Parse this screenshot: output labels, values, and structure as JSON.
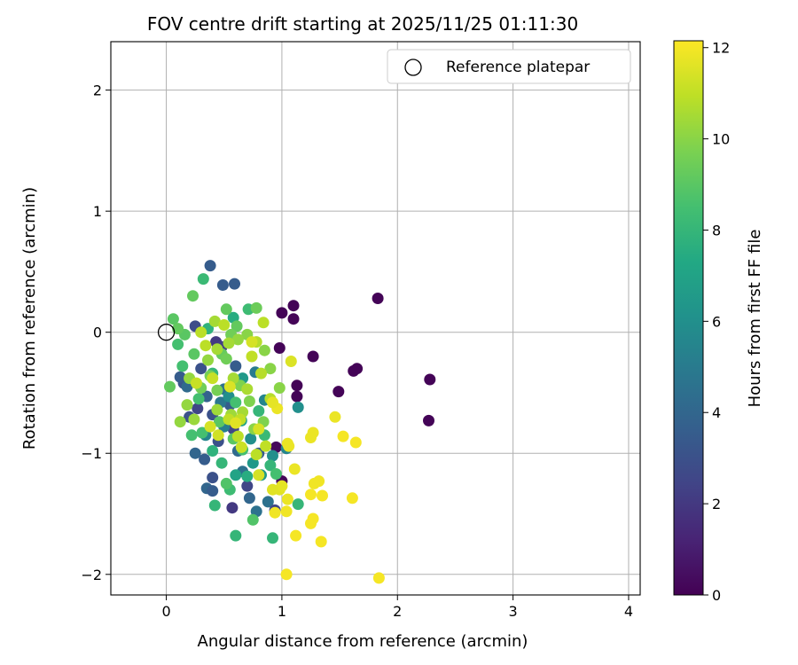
{
  "chart_data": {
    "type": "scatter",
    "title": "FOV centre drift starting at 2025/11/25 01:11:30",
    "xlabel": "Angular distance from reference (arcmin)",
    "ylabel": "Rotation from reference (arcmin)",
    "xlim": [
      -0.48,
      4.1
    ],
    "ylim": [
      -2.17,
      2.4
    ],
    "xticks": [
      0,
      1,
      2,
      3,
      4
    ],
    "yticks": [
      -2,
      -1,
      0,
      1,
      2
    ],
    "grid": true,
    "legend": {
      "position": "upper right",
      "entries": [
        "Reference platepar"
      ]
    },
    "reference_point": {
      "x": 0,
      "y": 0,
      "label": "Reference platepar"
    },
    "colorbar": {
      "label": "Hours from first FF file",
      "range": [
        0,
        12.15
      ],
      "ticks": [
        0,
        2,
        4,
        6,
        8,
        10,
        12
      ],
      "colormap": "viridis"
    },
    "series": [
      {
        "name": "FOV centre drift",
        "points": [
          [
            1.83,
            0.28,
            0.1
          ],
          [
            2.28,
            -0.39,
            0.1
          ],
          [
            2.27,
            -0.73,
            0.1
          ],
          [
            1.65,
            -0.3,
            0.1
          ],
          [
            1.62,
            -0.32,
            0.1
          ],
          [
            1.49,
            -0.49,
            0.1
          ],
          [
            1.27,
            -0.2,
            0.1
          ],
          [
            1.1,
            0.22,
            0.1
          ],
          [
            1.1,
            0.11,
            0.1
          ],
          [
            1.0,
            0.16,
            0.1
          ],
          [
            0.98,
            -0.13,
            0.1
          ],
          [
            1.13,
            -0.44,
            0.1
          ],
          [
            1.13,
            -0.53,
            0.1
          ],
          [
            0.95,
            -0.95,
            0.2
          ],
          [
            1.0,
            -1.23,
            0.2
          ],
          [
            0.38,
            0.55,
            3.5
          ],
          [
            0.49,
            0.39,
            3.5
          ],
          [
            0.59,
            0.4,
            3.5
          ],
          [
            0.25,
            0.05,
            2.8
          ],
          [
            0.43,
            -0.08,
            2.0
          ],
          [
            0.3,
            -0.3,
            3.0
          ],
          [
            0.15,
            -0.42,
            3.2
          ],
          [
            0.27,
            -0.63,
            2.5
          ],
          [
            0.35,
            -0.53,
            3.8
          ],
          [
            0.4,
            -0.68,
            3.0
          ],
          [
            0.5,
            -0.47,
            4.5
          ],
          [
            0.45,
            -0.9,
            3.0
          ],
          [
            0.33,
            -1.05,
            3.5
          ],
          [
            0.4,
            -1.2,
            3.0
          ],
          [
            0.35,
            -1.29,
            4.0
          ],
          [
            0.4,
            -1.31,
            3.5
          ],
          [
            0.57,
            -1.45,
            2.0
          ],
          [
            0.7,
            -1.27,
            2.5
          ],
          [
            0.72,
            -1.37,
            4.0
          ],
          [
            0.78,
            -1.48,
            4.5
          ],
          [
            0.88,
            -1.4,
            4.5
          ],
          [
            0.94,
            -1.47,
            2.5
          ],
          [
            0.25,
            -1.0,
            4.0
          ],
          [
            0.2,
            -0.7,
            3.0
          ],
          [
            0.12,
            -0.37,
            3.5
          ],
          [
            0.48,
            -0.12,
            2.2
          ],
          [
            0.55,
            -0.6,
            3.5
          ],
          [
            0.62,
            -0.98,
            4.2
          ],
          [
            0.66,
            -1.15,
            4.5
          ],
          [
            0.8,
            -1.0,
            3.5
          ],
          [
            0.58,
            -0.8,
            2.5
          ],
          [
            0.6,
            -0.28,
            3.5
          ],
          [
            0.77,
            -0.33,
            5.0
          ],
          [
            0.85,
            -0.56,
            5.5
          ],
          [
            1.14,
            -0.62,
            6.0
          ],
          [
            0.92,
            -1.02,
            6.0
          ],
          [
            1.04,
            -0.96,
            5.5
          ],
          [
            0.5,
            -0.78,
            5.2
          ],
          [
            0.47,
            -0.58,
            4.8
          ],
          [
            0.18,
            -0.45,
            4.2
          ],
          [
            0.34,
            -0.85,
            5.5
          ],
          [
            0.75,
            -1.08,
            6.5
          ],
          [
            0.82,
            -1.18,
            6.5
          ],
          [
            0.6,
            -1.18,
            7.0
          ],
          [
            0.65,
            -0.73,
            7.0
          ],
          [
            0.73,
            -0.88,
            6.0
          ],
          [
            0.54,
            -0.53,
            6.0
          ],
          [
            0.66,
            -0.38,
            6.5
          ],
          [
            0.32,
            0.44,
            8.2
          ],
          [
            0.58,
            0.12,
            7.5
          ],
          [
            0.71,
            0.19,
            8.3
          ],
          [
            0.36,
            0.03,
            7.8
          ],
          [
            0.92,
            -1.7,
            8.0
          ],
          [
            0.6,
            -1.68,
            8.0
          ],
          [
            1.14,
            -1.42,
            8.0
          ],
          [
            0.42,
            -1.43,
            8.0
          ],
          [
            0.55,
            -1.3,
            8.3
          ],
          [
            0.75,
            -1.55,
            8.8
          ],
          [
            0.22,
            -0.85,
            8.5
          ],
          [
            0.31,
            -0.83,
            8.5
          ],
          [
            0.4,
            -0.98,
            7.8
          ],
          [
            0.48,
            -1.08,
            8.0
          ],
          [
            0.52,
            -1.25,
            8.8
          ],
          [
            0.7,
            -1.19,
            7.5
          ],
          [
            0.85,
            -0.85,
            8.2
          ],
          [
            0.9,
            -1.1,
            8.0
          ],
          [
            0.95,
            -1.17,
            8.5
          ],
          [
            0.1,
            -0.1,
            8.5
          ],
          [
            0.14,
            -0.28,
            8.5
          ],
          [
            0.28,
            -0.55,
            8.5
          ],
          [
            0.4,
            -0.34,
            8.0
          ],
          [
            0.6,
            -0.58,
            8.5
          ],
          [
            0.8,
            -0.65,
            8.0
          ],
          [
            0.66,
            -0.97,
            8.5
          ],
          [
            0.58,
            -0.88,
            9.0
          ],
          [
            0.46,
            -0.74,
            9.0
          ],
          [
            0.24,
            -0.18,
            9.0
          ],
          [
            0.16,
            -0.02,
            9.0
          ],
          [
            0.06,
            0.11,
            9.0
          ],
          [
            0.1,
            0.03,
            9.2
          ],
          [
            0.03,
            -0.45,
            9.2
          ],
          [
            0.23,
            0.3,
            9.2
          ],
          [
            0.52,
            0.19,
            9.2
          ],
          [
            0.61,
            0.05,
            9.2
          ],
          [
            0.78,
            0.2,
            9.4
          ],
          [
            0.48,
            -0.18,
            9.3
          ],
          [
            0.52,
            -0.22,
            9.5
          ],
          [
            0.56,
            -0.02,
            9.5
          ],
          [
            0.3,
            -0.46,
            9.5
          ],
          [
            0.38,
            -0.36,
            9.6
          ],
          [
            0.44,
            -0.48,
            9.6
          ],
          [
            0.64,
            -0.44,
            9.8
          ],
          [
            0.72,
            -0.57,
            9.8
          ],
          [
            0.84,
            -0.74,
            9.8
          ],
          [
            0.76,
            -0.8,
            10.0
          ],
          [
            0.9,
            -0.3,
            10.0
          ],
          [
            0.98,
            -0.46,
            10.0
          ],
          [
            0.7,
            -0.02,
            10.0
          ],
          [
            0.85,
            -0.15,
            10.0
          ],
          [
            0.62,
            -0.06,
            10.2
          ],
          [
            0.36,
            -0.23,
            10.2
          ],
          [
            0.2,
            -0.38,
            10.2
          ],
          [
            0.18,
            -0.6,
            10.2
          ],
          [
            0.12,
            -0.74,
            10.2
          ],
          [
            0.24,
            -0.72,
            10.3
          ],
          [
            0.44,
            -0.64,
            10.4
          ],
          [
            0.56,
            -0.68,
            10.4
          ],
          [
            0.66,
            -0.66,
            10.5
          ],
          [
            0.42,
            0.09,
            10.5
          ],
          [
            0.44,
            -0.14,
            10.5
          ],
          [
            0.54,
            -0.09,
            10.5
          ],
          [
            0.58,
            -0.38,
            10.5
          ],
          [
            0.7,
            -0.47,
            10.6
          ],
          [
            0.9,
            -0.55,
            10.8
          ],
          [
            0.78,
            -0.08,
            10.8
          ],
          [
            0.82,
            -0.34,
            10.8
          ],
          [
            0.84,
            0.08,
            10.9
          ],
          [
            0.5,
            0.06,
            10.9
          ],
          [
            0.3,
            0.0,
            10.9
          ],
          [
            0.34,
            -0.11,
            10.9
          ],
          [
            0.62,
            -0.86,
            10.9
          ],
          [
            0.78,
            -1.01,
            10.9
          ],
          [
            0.86,
            -0.94,
            11.0
          ],
          [
            0.74,
            -0.2,
            11.0
          ],
          [
            0.64,
            -0.72,
            11.0
          ],
          [
            0.54,
            -0.72,
            11.0
          ],
          [
            0.4,
            -0.38,
            11.1
          ],
          [
            0.26,
            -0.42,
            11.1
          ],
          [
            1.08,
            -0.24,
            11.5
          ],
          [
            1.46,
            -0.7,
            11.8
          ],
          [
            1.27,
            -0.83,
            11.8
          ],
          [
            1.25,
            -0.87,
            11.8
          ],
          [
            1.53,
            -0.86,
            12.0
          ],
          [
            1.64,
            -0.91,
            12.0
          ],
          [
            1.05,
            -0.92,
            11.8
          ],
          [
            1.06,
            -0.94,
            11.8
          ],
          [
            0.96,
            -0.63,
            11.8
          ],
          [
            0.92,
            -0.58,
            11.7
          ],
          [
            1.32,
            -1.23,
            11.9
          ],
          [
            1.28,
            -1.25,
            11.9
          ],
          [
            1.11,
            -1.13,
            11.8
          ],
          [
            0.98,
            -1.3,
            11.6
          ],
          [
            1.05,
            -1.38,
            11.8
          ],
          [
            1.0,
            -1.27,
            11.7
          ],
          [
            0.92,
            -1.3,
            11.6
          ],
          [
            0.94,
            -1.49,
            11.9
          ],
          [
            1.04,
            -1.48,
            11.9
          ],
          [
            1.25,
            -1.34,
            12.0
          ],
          [
            1.35,
            -1.35,
            12.0
          ],
          [
            1.61,
            -1.37,
            12.0
          ],
          [
            1.27,
            -1.54,
            12.0
          ],
          [
            1.25,
            -1.58,
            12.0
          ],
          [
            1.12,
            -1.68,
            12.0
          ],
          [
            1.34,
            -1.73,
            12.0
          ],
          [
            1.04,
            -2.0,
            12.0
          ],
          [
            1.84,
            -2.03,
            12.0
          ],
          [
            0.8,
            -0.8,
            11.4
          ],
          [
            0.8,
            -1.18,
            11.4
          ],
          [
            0.74,
            -0.08,
            11.4
          ],
          [
            0.6,
            -0.75,
            11.6
          ],
          [
            0.38,
            -0.78,
            11.4
          ],
          [
            0.45,
            -0.85,
            11.3
          ],
          [
            0.55,
            -0.45,
            11.5
          ],
          [
            0.65,
            -0.95,
            11.2
          ]
        ]
      }
    ]
  }
}
